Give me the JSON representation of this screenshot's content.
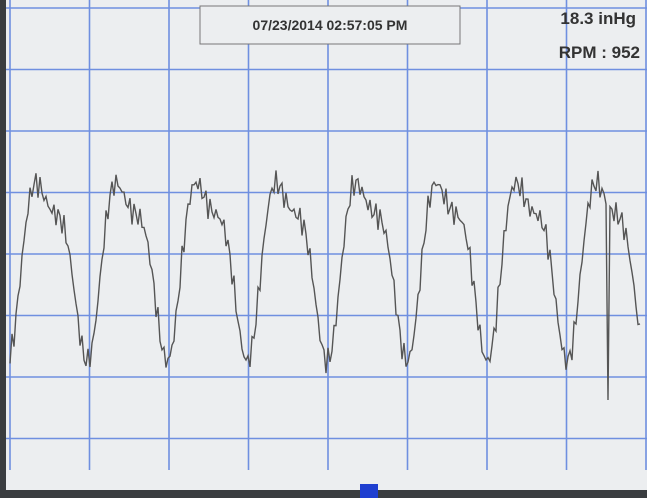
{
  "header": {
    "timestamp": "07/23/2014 02:57:05 PM",
    "pressure": "18.3 inHg",
    "rpm": "RPM : 952"
  }
}
